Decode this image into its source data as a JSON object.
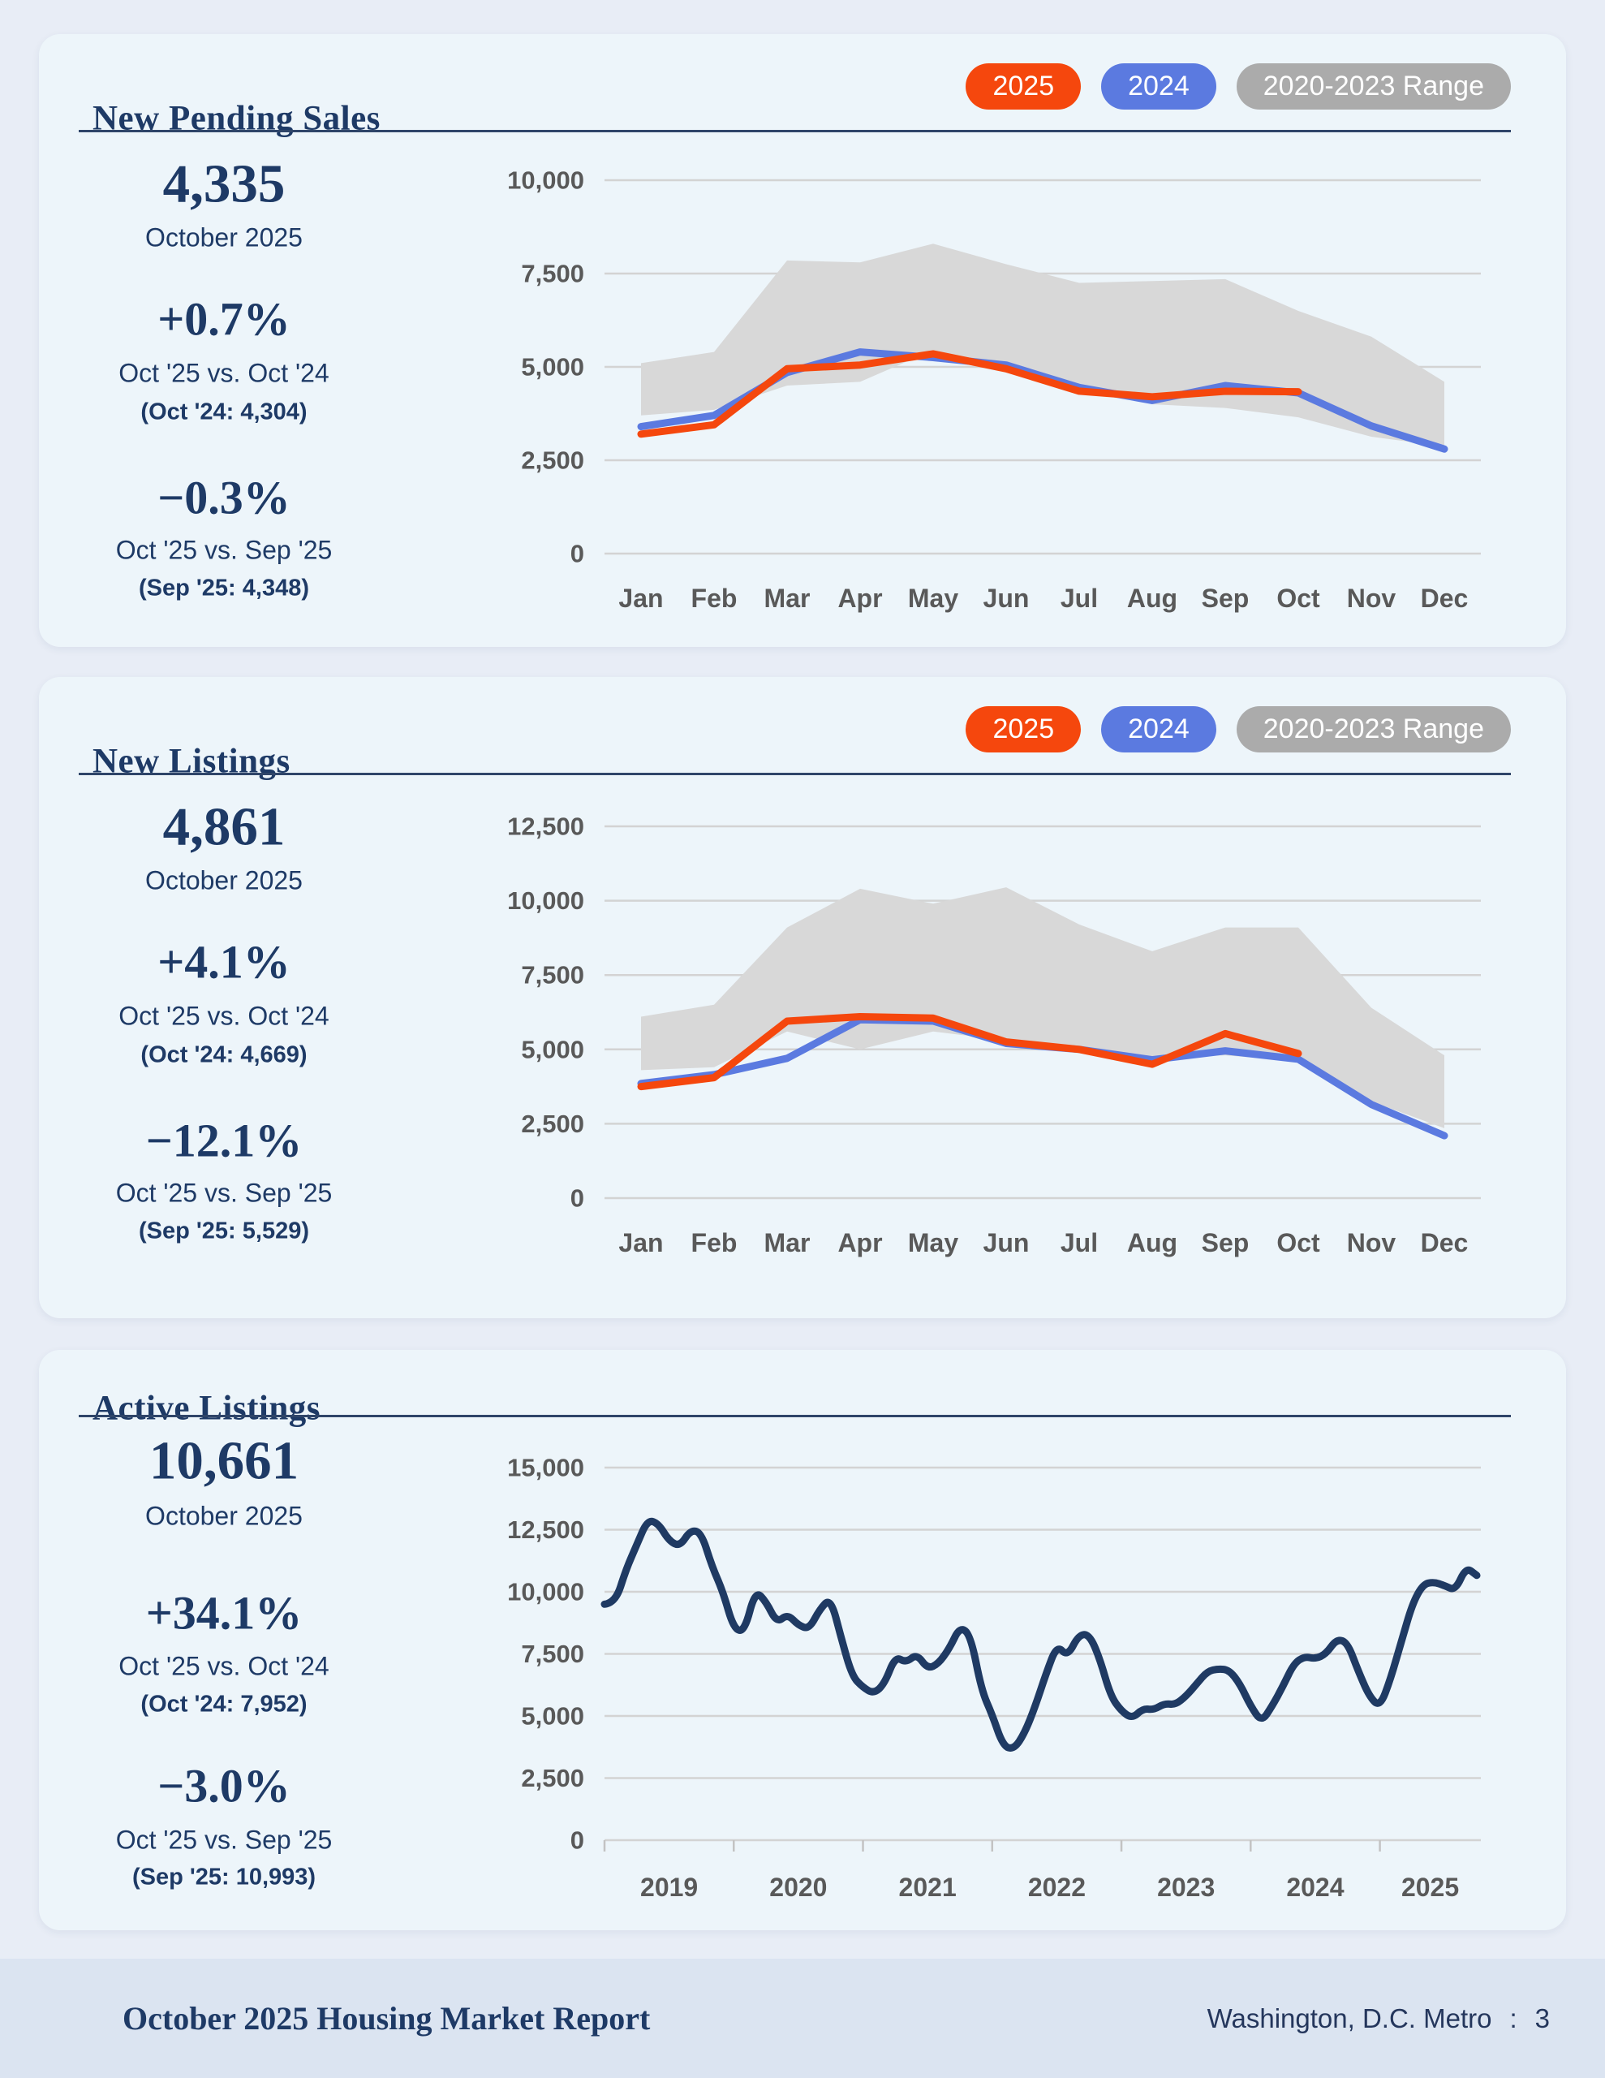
{
  "panels": [
    {
      "title": "New Pending Sales",
      "legend": [
        {
          "label": "2025",
          "color": "#f5470d"
        },
        {
          "label": "2024",
          "color": "#5b7ae0"
        },
        {
          "label": "2020-2023 Range",
          "color": "#ababab"
        }
      ],
      "stats": {
        "value": "4,335",
        "value_label": "October 2025",
        "yoy_pct": "+0.7%",
        "yoy_label": "Oct '25 vs. Oct '24",
        "yoy_detail": "(Oct '24: 4,304)",
        "mom_pct": "−0.3%",
        "mom_label": "Oct '25 vs. Sep '25",
        "mom_detail": "(Sep '25: 4,348)"
      }
    },
    {
      "title": "New Listings",
      "legend": [
        {
          "label": "2025",
          "color": "#f5470d"
        },
        {
          "label": "2024",
          "color": "#5b7ae0"
        },
        {
          "label": "2020-2023 Range",
          "color": "#ababab"
        }
      ],
      "stats": {
        "value": "4,861",
        "value_label": "October 2025",
        "yoy_pct": "+4.1%",
        "yoy_label": "Oct '25 vs. Oct '24",
        "yoy_detail": "(Oct '24: 4,669)",
        "mom_pct": "−12.1%",
        "mom_label": "Oct '25 vs. Sep '25",
        "mom_detail": "(Sep '25: 5,529)"
      }
    },
    {
      "title": "Active Listings",
      "legend": [],
      "stats": {
        "value": "10,661",
        "value_label": "October 2025",
        "yoy_pct": "+34.1%",
        "yoy_label": "Oct '25 vs. Oct '24",
        "yoy_detail": "(Oct '24: 7,952)",
        "mom_pct": "−3.0%",
        "mom_label": "Oct '25 vs. Sep '25",
        "mom_detail": "(Sep '25: 10,993)"
      }
    }
  ],
  "chart_data": [
    {
      "type": "line",
      "title": "New Pending Sales",
      "categories": [
        "Jan",
        "Feb",
        "Mar",
        "Apr",
        "May",
        "Jun",
        "Jul",
        "Aug",
        "Sep",
        "Oct",
        "Nov",
        "Dec"
      ],
      "series": [
        {
          "name": "2025",
          "color": "#f5470d",
          "values": [
            3200,
            3450,
            4950,
            5050,
            5350,
            4950,
            4350,
            4200,
            4348,
            4335
          ]
        },
        {
          "name": "2024",
          "color": "#5b7ae0",
          "values": [
            3400,
            3700,
            4850,
            5400,
            5250,
            5050,
            4450,
            4100,
            4500,
            4304,
            3420,
            2800
          ]
        }
      ],
      "band": {
        "name": "2020-2023 Range",
        "color": "#d8d8d8",
        "low": [
          3700,
          3850,
          4500,
          4600,
          5450,
          5000,
          4450,
          4000,
          3900,
          3650,
          3130,
          2870
        ],
        "high": [
          5100,
          5400,
          7850,
          7800,
          8300,
          7750,
          7250,
          7300,
          7350,
          6500,
          5810,
          4600
        ]
      },
      "ylim": [
        0,
        10000
      ],
      "ytick": 2500,
      "grid": true,
      "legend_position": "top-right"
    },
    {
      "type": "line",
      "title": "New Listings",
      "categories": [
        "Jan",
        "Feb",
        "Mar",
        "Apr",
        "May",
        "Jun",
        "Jul",
        "Aug",
        "Sep",
        "Oct",
        "Nov",
        "Dec"
      ],
      "series": [
        {
          "name": "2025",
          "color": "#f5470d",
          "values": [
            3750,
            4050,
            5950,
            6100,
            6050,
            5250,
            5000,
            4500,
            5529,
            4861
          ]
        },
        {
          "name": "2024",
          "color": "#5b7ae0",
          "values": [
            3850,
            4150,
            4700,
            6000,
            5950,
            5200,
            5000,
            4650,
            4950,
            4669,
            3150,
            2100
          ]
        }
      ],
      "band": {
        "name": "2020-2023 Range",
        "color": "#d8d8d8",
        "low": [
          4300,
          4400,
          5600,
          5000,
          5600,
          5300,
          5100,
          4700,
          4800,
          4600,
          3250,
          2350
        ],
        "high": [
          6100,
          6500,
          9100,
          10400,
          9900,
          10450,
          9200,
          8300,
          9100,
          9100,
          6400,
          4800
        ]
      },
      "ylim": [
        0,
        12500
      ],
      "ytick": 2500,
      "grid": true,
      "legend_position": "top-right"
    },
    {
      "type": "line",
      "title": "Active Listings",
      "x_years": [
        2019,
        2020,
        2021,
        2022,
        2023,
        2024,
        2025
      ],
      "x_start": "Jan 2019",
      "x_end": "Oct 2025",
      "series": [
        {
          "name": "Active Listings",
          "color": "#1f3a63",
          "smooth": true,
          "values": [
            9500,
            9550,
            10900,
            11900,
            12900,
            12750,
            12050,
            11830,
            12490,
            12380,
            11000,
            10000,
            8500,
            8400,
            10050,
            9600,
            8750,
            9100,
            8650,
            8500,
            9300,
            9750,
            8100,
            6600,
            6150,
            5900,
            6300,
            7400,
            7150,
            7500,
            6900,
            7100,
            7700,
            8600,
            8250,
            6050,
            5050,
            3800,
            3650,
            4300,
            5400,
            6700,
            7850,
            7400,
            8250,
            8300,
            7300,
            5800,
            5200,
            4900,
            5300,
            5250,
            5500,
            5450,
            5800,
            6300,
            6800,
            6900,
            6850,
            6300,
            5400,
            4750,
            5400,
            6200,
            7100,
            7400,
            7300,
            7500,
            8100,
            7952,
            6800,
            5800,
            5350,
            6500,
            8000,
            9500,
            10300,
            10400,
            10250,
            10050,
            10993,
            10661
          ]
        }
      ],
      "ylim": [
        0,
        15000
      ],
      "ytick": 2500,
      "grid": true
    }
  ],
  "footer": {
    "left": "October 2025 Housing Market Report",
    "right_metro": "Washington, D.C. Metro",
    "right_sep": ":",
    "right_page": "3"
  }
}
